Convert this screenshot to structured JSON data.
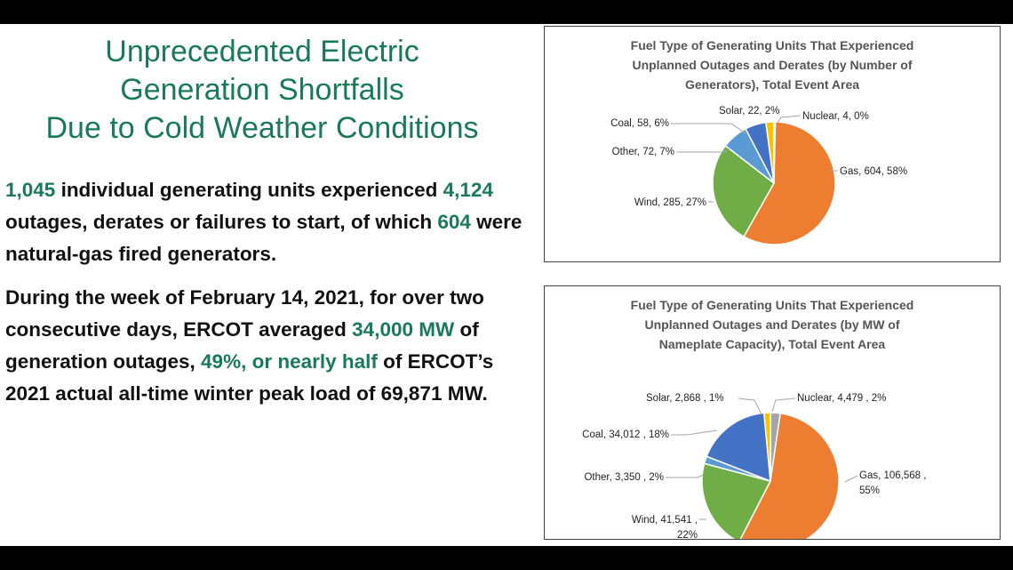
{
  "title": {
    "line1": "Unprecedented Electric",
    "line2": "Generation Shortfalls",
    "line3": "Due to Cold Weather Conditions"
  },
  "para1": {
    "n1": "1,045",
    "t1": " individual generating units experienced ",
    "n2": "4,124",
    "t2": " outages, derates or failures to start, of which ",
    "n3": "604",
    "t3": " were natural-gas fired generators."
  },
  "para2": {
    "t1": "During the week of February 14, 2021, for over two consecutive days, ERCOT averaged ",
    "h1": "34,000 MW",
    "t2": " of generation outages, ",
    "h2": "49%, or nearly half",
    "t3": " of ERCOT’s 2021 actual all-time winter peak load of 69,871 MW."
  },
  "colors": {
    "accent": "#197a5a",
    "gas": "#ed7d31",
    "wind": "#70ad47",
    "other": "#5b9bd5",
    "coal": "#4472c4",
    "solar": "#ffc000",
    "nuclear": "#a5a5a5"
  },
  "chart_data": [
    {
      "type": "pie",
      "title_lines": [
        "Fuel Type of Generating Units That Experienced",
        "Unplanned Outages and Derates (by Number of",
        "Generators), Total Event Area"
      ],
      "start_category": "Nuclear",
      "direction": "clockwise",
      "slices": [
        {
          "name": "Nuclear",
          "value": 4,
          "label_lines": [
            "Nuclear, 4, 0%"
          ]
        },
        {
          "name": "Gas",
          "value": 604,
          "label_lines": [
            "Gas, 604, 58%"
          ]
        },
        {
          "name": "Wind",
          "value": 285,
          "label_lines": [
            "Wind, 285, 27%"
          ]
        },
        {
          "name": "Other",
          "value": 72,
          "label_lines": [
            "Other, 72, 7%"
          ]
        },
        {
          "name": "Coal",
          "value": 58,
          "label_lines": [
            "Coal, 58, 6%"
          ]
        },
        {
          "name": "Solar",
          "value": 22,
          "label_lines": [
            "Solar, 22, 2%"
          ]
        }
      ]
    },
    {
      "type": "pie",
      "title_lines": [
        "Fuel Type of Generating Units That Experienced",
        "Unplanned Outages and Derates (by MW of",
        "Nameplate Capacity), Total Event Area"
      ],
      "start_category": "Nuclear",
      "direction": "clockwise",
      "slices": [
        {
          "name": "Nuclear",
          "value": 4479,
          "label_lines": [
            "Nuclear, 4,479 , 2%"
          ]
        },
        {
          "name": "Gas",
          "value": 106568,
          "label_lines": [
            "Gas, 106,568 ,",
            "55%"
          ]
        },
        {
          "name": "Wind",
          "value": 41541,
          "label_lines": [
            "Wind, 41,541 ,",
            "22%"
          ]
        },
        {
          "name": "Other",
          "value": 3350,
          "label_lines": [
            "Other, 3,350 , 2%"
          ]
        },
        {
          "name": "Coal",
          "value": 34012,
          "label_lines": [
            "Coal, 34,012 , 18%"
          ]
        },
        {
          "name": "Solar",
          "value": 2868,
          "label_lines": [
            "Solar, 2,868 , 1%"
          ]
        }
      ]
    }
  ]
}
